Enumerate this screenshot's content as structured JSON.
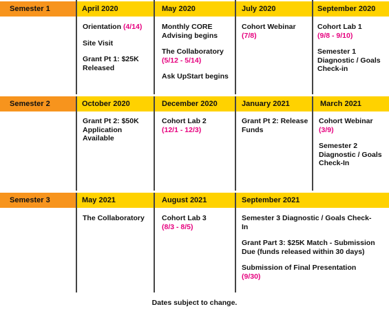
{
  "semesters": [
    {
      "label": "Semester 1",
      "months": [
        "April 2020",
        "May 2020",
        "July 2020",
        "September 2020"
      ],
      "cells": [
        [
          {
            "text": "Orientation",
            "accent": "(4/14)"
          },
          {
            "text": "Site Visit",
            "accent": ""
          },
          {
            "text": "Grant Pt 1: $25K Released",
            "accent": ""
          }
        ],
        [
          {
            "text": "Monthly CORE Advising begins",
            "accent": ""
          },
          {
            "text": "The Collaboratory",
            "accent": "(5/12 - 5/14)"
          },
          {
            "text": "Ask UpStart begins",
            "accent": ""
          }
        ],
        [
          {
            "text": "Cohort Webinar",
            "accent": "(7/8)"
          }
        ],
        [
          {
            "text": "Cohort Lab 1",
            "accent": "(9/8 - 9/10)"
          },
          {
            "text": "Semester 1 Diagnostic / Goals Check-in",
            "accent": ""
          }
        ]
      ]
    },
    {
      "label": "Semester 2",
      "months": [
        "October 2020",
        "December 2020",
        "January 2021",
        "March 2021"
      ],
      "cells": [
        [
          {
            "text": "Grant Pt 2: $50K Application Available",
            "accent": ""
          }
        ],
        [
          {
            "text": "Cohort Lab 2",
            "accent": "(12/1 - 12/3)"
          }
        ],
        [
          {
            "text": "Grant Pt 2: Release Funds",
            "accent": ""
          }
        ],
        [
          {
            "text": "Cohort Webinar",
            "accent": "(3/9)"
          },
          {
            "text": "Semester 2 Diagnostic / Goals Check-In",
            "accent": ""
          }
        ]
      ]
    },
    {
      "label": "Semester 3",
      "months": [
        "May 2021",
        "August 2021",
        "September 2021"
      ],
      "cells": [
        [
          {
            "text": "The Collaboratory",
            "accent": ""
          }
        ],
        [
          {
            "text": "Cohort Lab 3",
            "accent": "(8/3 - 8/5)"
          }
        ],
        [
          {
            "text": "Semester 3 Diagnostic / Goals Check-In",
            "accent": ""
          },
          {
            "text": "Grant Part 3: $25K Match - Submission Due (funds released within 30 days)",
            "accent": ""
          },
          {
            "text": "Submission of Final Presentation",
            "accent": "(9/30)"
          }
        ]
      ]
    }
  ],
  "footer": "Dates subject to change.",
  "colors": {
    "semester_header": "#f7941d",
    "month_header": "#ffd200",
    "accent": "#e6007e"
  }
}
